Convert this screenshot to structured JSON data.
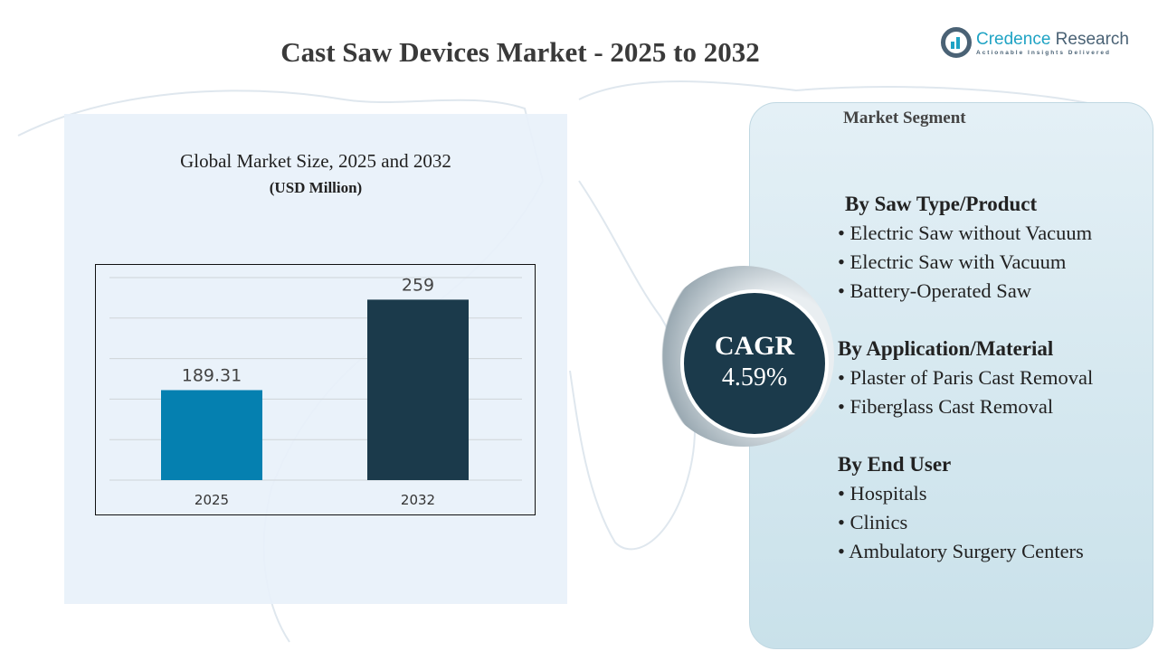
{
  "title": "Cast Saw Devices Market - 2025 to 2032",
  "logo": {
    "name_part1": "Credence",
    "name_part2": " Research",
    "tagline": "Actionable Insights Delivered"
  },
  "chart_data": {
    "type": "bar",
    "title": "Global Market Size, 2025 and 2032",
    "ylabel": "(USD Million)",
    "categories": [
      "2025",
      "2032"
    ],
    "values": [
      189.31,
      259
    ],
    "data_labels": [
      "189.31",
      "259"
    ],
    "colors": [
      "#0580b0",
      "#1b3a4b"
    ],
    "ylim": [
      120,
      276
    ],
    "grid": true
  },
  "cagr": {
    "label": "CAGR",
    "value": "4.59%"
  },
  "segments": {
    "heading": "Market Segment",
    "groups": [
      {
        "title": "By Saw Type/Product",
        "items": [
          "Electric Saw without Vacuum",
          "Electric Saw with Vacuum",
          "Battery-Operated Saw"
        ]
      },
      {
        "title": "By Application/Material",
        "items": [
          "Plaster of Paris Cast Removal",
          "Fiberglass Cast Removal"
        ]
      },
      {
        "title": "By End User",
        "items": [
          "Hospitals",
          "Clinics",
          "Ambulatory Surgery Centers"
        ]
      }
    ]
  }
}
